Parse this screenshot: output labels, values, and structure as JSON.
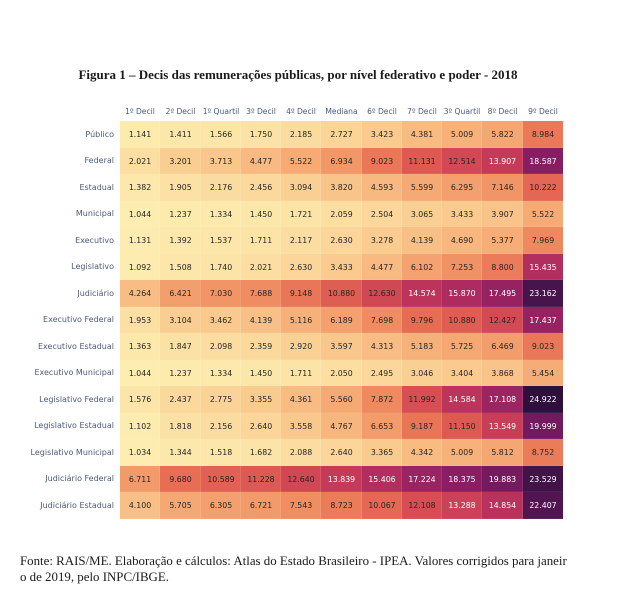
{
  "title": "Figura 1 – Decis das remunerações públicas, por nível federativo e poder - 2018",
  "footer": {
    "line1": "Fonte: RAIS/ME. Elaboração e cálculos: Atlas do Estado Brasileiro - IPEA. Valores corrigidos para janeir",
    "line2": "o de 2019, pelo INPC/IBGE."
  },
  "chart_data": {
    "type": "heatmap",
    "title": "Figura 1 – Decis das remunerações públicas, por nível federativo e poder - 2018",
    "columns": [
      "1º Decil",
      "2º Decil",
      "1º Quartil",
      "3º Decil",
      "4º Decil",
      "Mediana",
      "6º Decil",
      "7º Decil",
      "3º Quartil",
      "8º Decil",
      "9º Decil"
    ],
    "rows": [
      "Público",
      "Federal",
      "Estadual",
      "Municipal",
      "Executivo",
      "Legislativo",
      "Judiciário",
      "Executivo Federal",
      "Executivo Estadual",
      "Executivo Municipal",
      "Legislativo Federal",
      "Legislativo Estadual",
      "Legislativo Municipal",
      "Judiciário Federal",
      "Judiciário Estadual"
    ],
    "values": [
      [
        1.141,
        1.411,
        1.566,
        1.75,
        2.185,
        2.727,
        3.423,
        4.381,
        5.009,
        5.822,
        8.984
      ],
      [
        2.021,
        3.201,
        3.713,
        4.477,
        5.522,
        6.934,
        9.023,
        11.131,
        12.514,
        13.907,
        18.587
      ],
      [
        1.382,
        1.905,
        2.176,
        2.456,
        3.094,
        3.82,
        4.593,
        5.599,
        6.295,
        7.146,
        10.222
      ],
      [
        1.044,
        1.237,
        1.334,
        1.45,
        1.721,
        2.059,
        2.504,
        3.065,
        3.433,
        3.907,
        5.522
      ],
      [
        1.131,
        1.392,
        1.537,
        1.711,
        2.117,
        2.63,
        3.278,
        4.139,
        4.69,
        5.377,
        7.969
      ],
      [
        1.092,
        1.508,
        1.74,
        2.021,
        2.63,
        3.433,
        4.477,
        6.102,
        7.253,
        8.8,
        15.435
      ],
      [
        4.264,
        6.421,
        7.03,
        7.688,
        9.148,
        10.88,
        12.63,
        14.574,
        15.87,
        17.495,
        23.162
      ],
      [
        1.953,
        3.104,
        3.462,
        4.139,
        5.116,
        6.189,
        7.698,
        9.796,
        10.88,
        12.427,
        17.437
      ],
      [
        1.363,
        1.847,
        2.098,
        2.359,
        2.92,
        3.597,
        4.313,
        5.183,
        5.725,
        6.469,
        9.023
      ],
      [
        1.044,
        1.237,
        1.334,
        1.45,
        1.711,
        2.05,
        2.495,
        3.046,
        3.404,
        3.868,
        5.454
      ],
      [
        1.576,
        2.437,
        2.775,
        3.355,
        4.361,
        5.56,
        7.872,
        11.992,
        14.584,
        17.108,
        24.922
      ],
      [
        1.102,
        1.818,
        2.156,
        2.64,
        3.558,
        4.767,
        6.653,
        9.187,
        11.15,
        13.549,
        19.999
      ],
      [
        1.034,
        1.344,
        1.518,
        1.682,
        2.088,
        2.64,
        3.365,
        4.342,
        5.009,
        5.812,
        8.752
      ],
      [
        6.711,
        9.68,
        10.589,
        11.228,
        12.64,
        13.839,
        15.406,
        17.224,
        18.375,
        19.883,
        23.529
      ],
      [
        4.1,
        5.705,
        6.305,
        6.721,
        7.543,
        8.723,
        10.067,
        12.108,
        13.288,
        14.854,
        22.407
      ]
    ],
    "value_format": "3 decimal places, dot as thousands-style separator",
    "colorscale": {
      "name": "matter",
      "stops": [
        "#fdedb0",
        "#facd91",
        "#f6ad77",
        "#f08e62",
        "#e76d54",
        "#d85053",
        "#c3385a",
        "#a82860",
        "#8a1d63",
        "#6b185d",
        "#4c1550",
        "#2f0f3d"
      ],
      "vmin": 1.034,
      "vmax": 24.922
    },
    "legend_position": "none",
    "grid": false
  }
}
